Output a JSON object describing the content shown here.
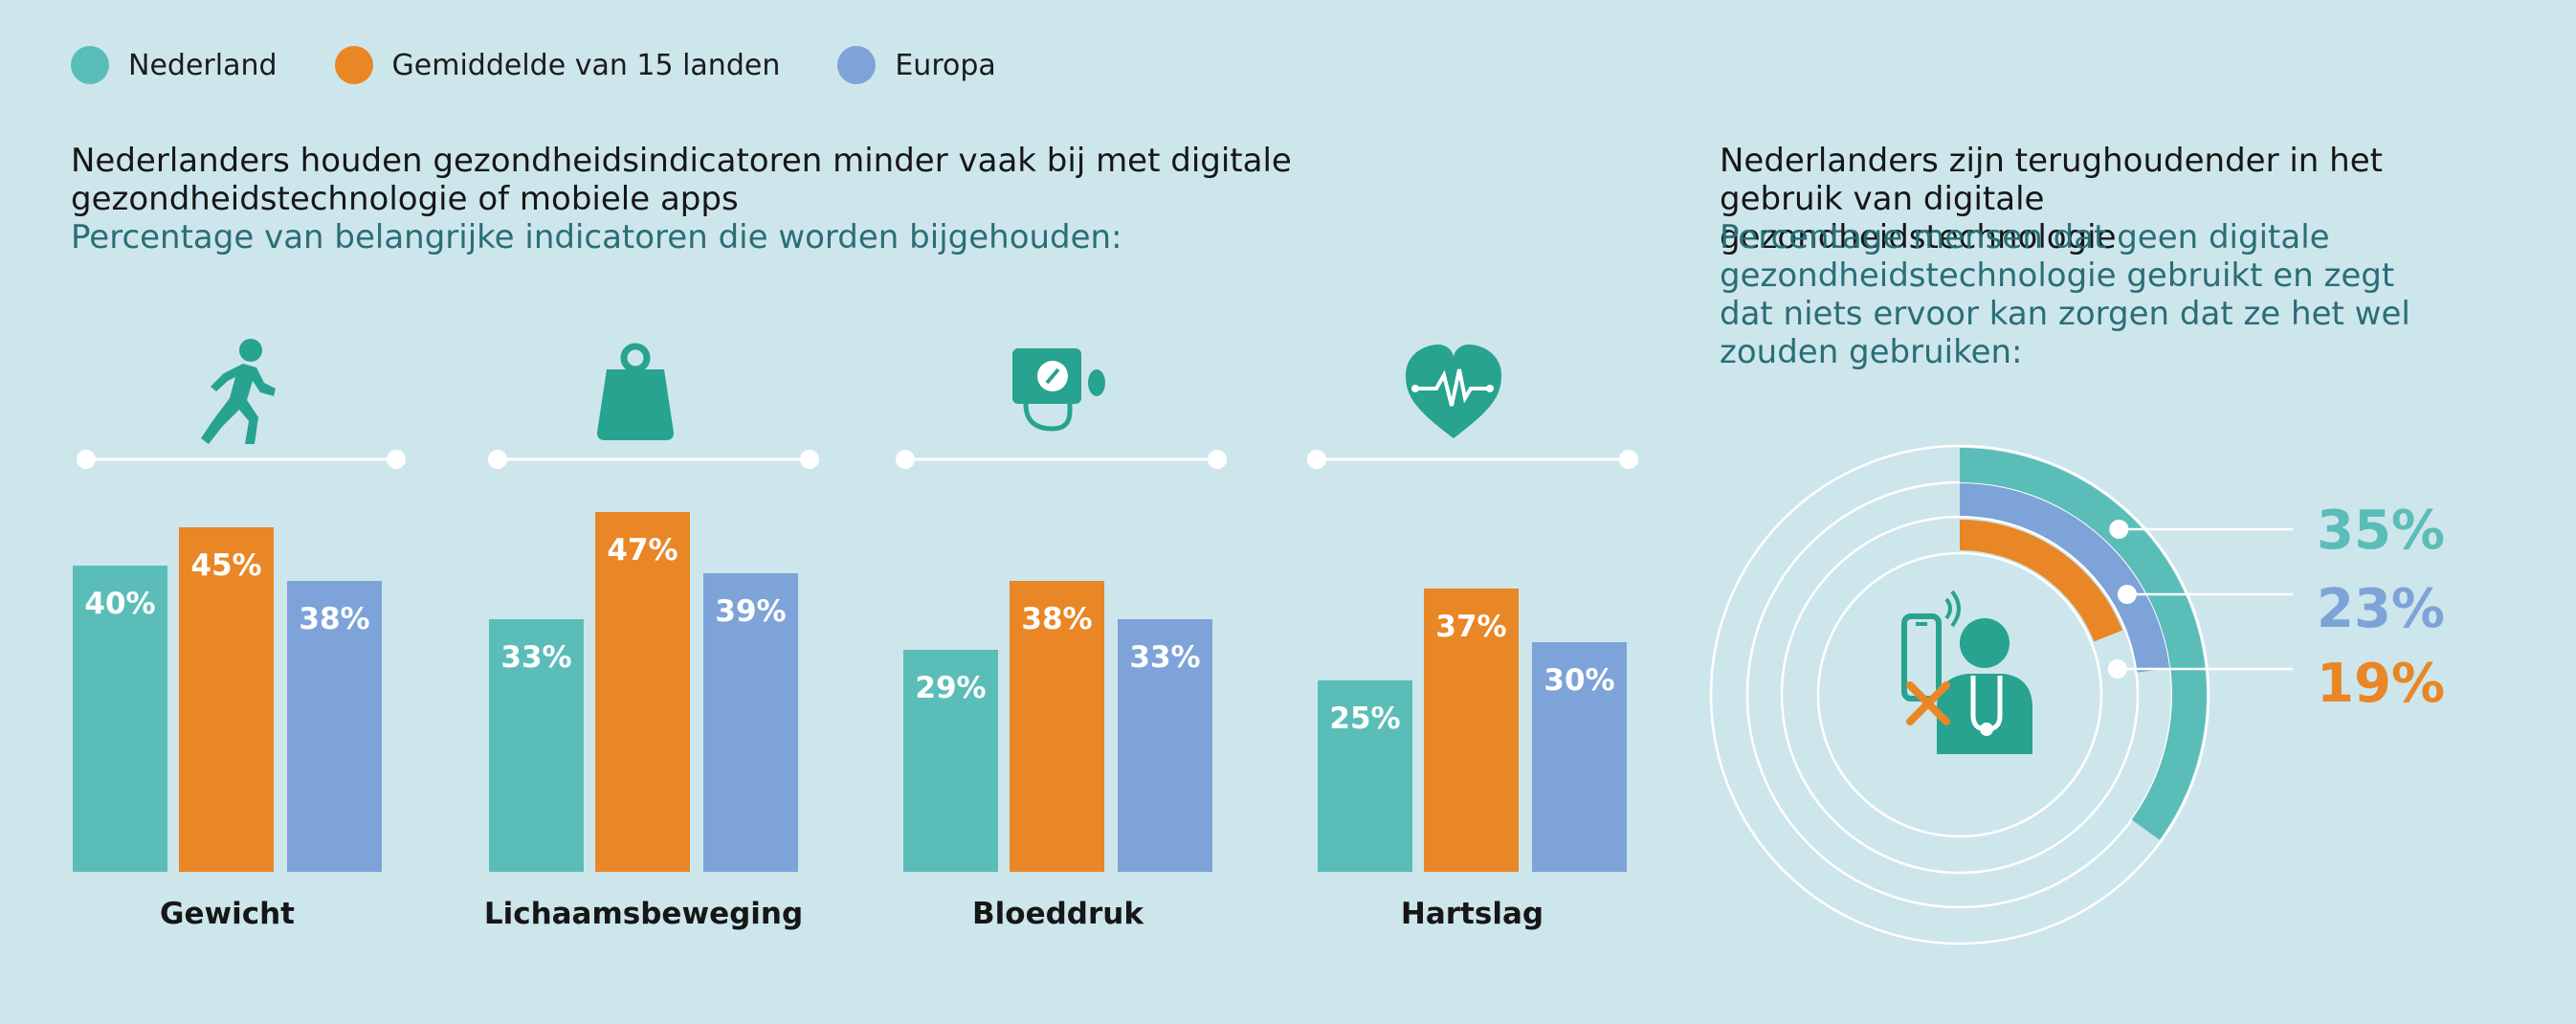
{
  "legend": [
    {
      "label": "Nederland",
      "color": "#5bbdb8"
    },
    {
      "label": "Gemiddelde van 15 landen",
      "color": "#e98625"
    },
    {
      "label": "Europa",
      "color": "#7ea3d8"
    }
  ],
  "left": {
    "title": "Nederlanders houden gezondheidsindicatoren minder vaak bij met digitale gezondheidstechnologie of mobiele apps",
    "subtitle": "Percentage van belangrijke indicatoren die worden bijgehouden:"
  },
  "right": {
    "title": "Nederlanders zijn terughoudender in het gebruik van digitale gezondheidstechnologie",
    "subtitle": "Percentage mensen dat geen digitale gezondheidstechnologie gebruikt en zegt dat niets ervoor kan zorgen dat ze het wel zouden gebruiken:"
  },
  "chart_data": [
    {
      "type": "bar",
      "categories": [
        "Gewicht",
        "Lichaamsbeweging",
        "Bloeddruk",
        "Hartslag"
      ],
      "category_icons": [
        "running-icon",
        "weight-icon",
        "blood-pressure-icon",
        "heart-rate-icon"
      ],
      "series": [
        {
          "name": "Nederland",
          "values": [
            40,
            33,
            29,
            25
          ],
          "color": "#5bbdb8"
        },
        {
          "name": "Gemiddelde van 15 landen",
          "values": [
            45,
            47,
            38,
            37
          ],
          "color": "#e98625"
        },
        {
          "name": "Europa",
          "values": [
            38,
            39,
            33,
            30
          ],
          "color": "#7ea3d8"
        }
      ],
      "value_suffix": "%",
      "ylim": [
        0,
        47
      ]
    },
    {
      "type": "radial-bar",
      "center_icon": "doctor-no-phone-icon",
      "series": [
        {
          "name": "Nederland",
          "value": 35,
          "label": "35%",
          "color": "#5bbdb8"
        },
        {
          "name": "Europa",
          "value": 23,
          "label": "23%",
          "color": "#7ea3d8"
        },
        {
          "name": "Gemiddelde van 15 landen",
          "value": 19,
          "label": "19%",
          "color": "#e98625"
        }
      ]
    }
  ]
}
